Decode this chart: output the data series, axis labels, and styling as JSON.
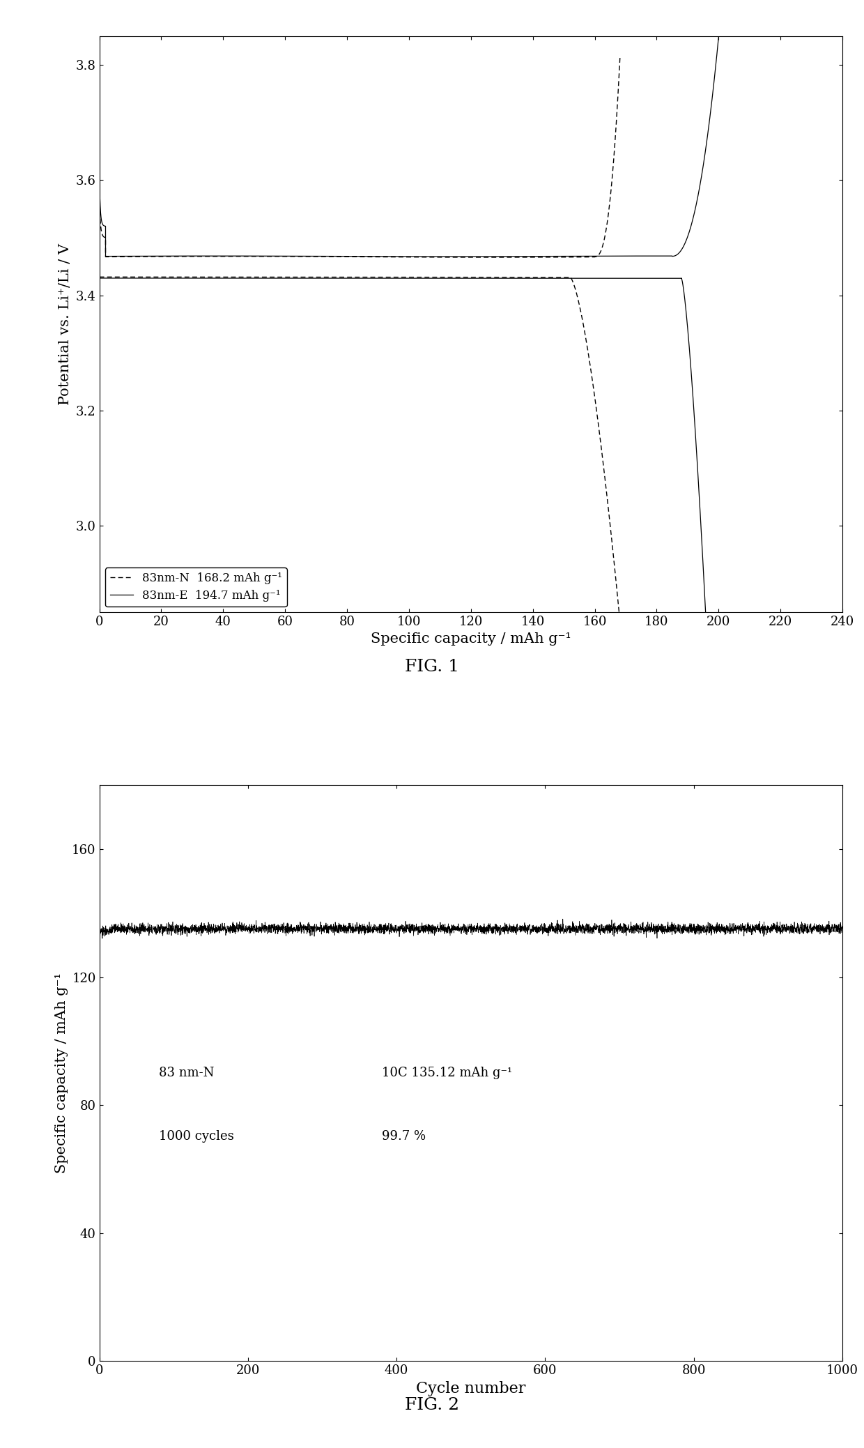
{
  "fig1": {
    "xlabel": "Specific capacity / mAh g⁻¹",
    "ylabel": "Potential vs. Li⁺/Li / V",
    "xlim": [
      0,
      240
    ],
    "ylim": [
      2.85,
      3.85
    ],
    "xticks": [
      0,
      20,
      40,
      60,
      80,
      100,
      120,
      140,
      160,
      180,
      200,
      220,
      240
    ],
    "yticks": [
      3.0,
      3.2,
      3.4,
      3.6,
      3.8
    ],
    "legend": [
      {
        "label": "83nm-N  168.2 mAh g⁻¹",
        "style": "dashed"
      },
      {
        "label": "83nm-E  194.7 mAh g⁻¹",
        "style": "solid"
      }
    ]
  },
  "fig2": {
    "xlabel": "Cycle number",
    "ylabel": "Specific capacity / mAh g⁻¹",
    "xlim": [
      0,
      1000
    ],
    "ylim": [
      0,
      180
    ],
    "xticks": [
      0,
      200,
      400,
      600,
      800,
      1000
    ],
    "yticks": [
      0,
      40,
      80,
      120,
      160
    ],
    "annot1_left": "83 nm-N",
    "annot1_right": "10C 135.12 mAh g⁻¹",
    "annot2_left": "1000 cycles",
    "annot2_right": "99.7 %",
    "capacity_mean": 135.12
  },
  "fig1_caption": "FIG. 1",
  "fig2_caption": "FIG. 2",
  "label_font_size": 15,
  "tick_font_size": 13,
  "caption_font_size": 18
}
